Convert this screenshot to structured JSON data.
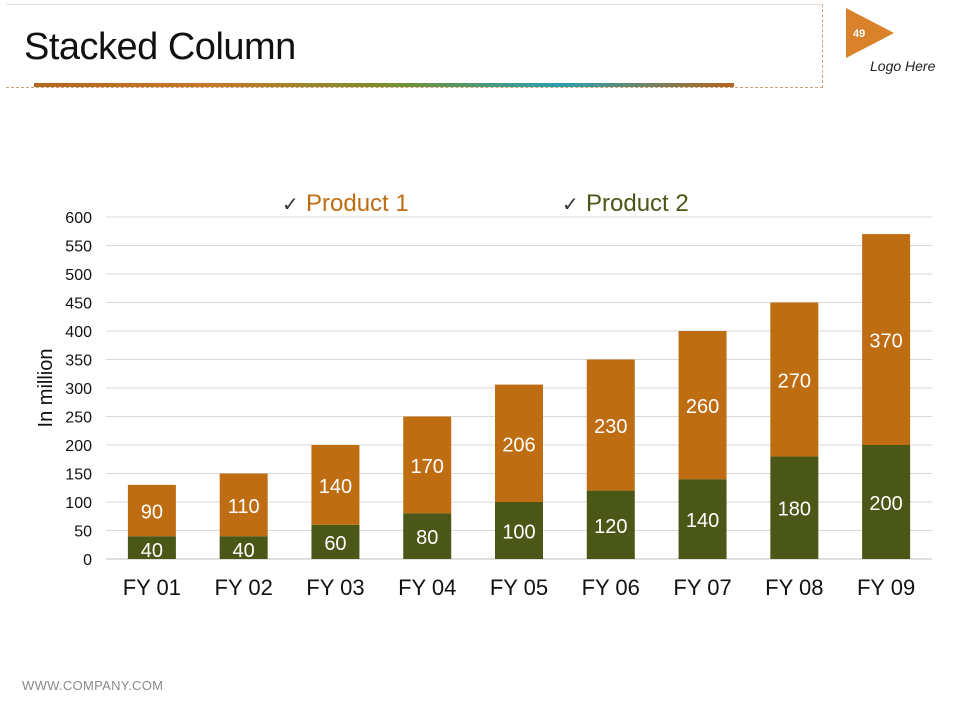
{
  "slide": {
    "title": "Stacked Column",
    "page_number": "49",
    "logo_text": "Logo Here",
    "footer": "WWW.COMPANY.COM"
  },
  "colors": {
    "product1": "#bf6d12",
    "product2": "#4a5716",
    "gridline": "#d9d9d9",
    "accent": "#c9782a"
  },
  "chart_data": {
    "type": "bar",
    "stacked": true,
    "title": "",
    "xlabel": "",
    "ylabel": "In million",
    "categories": [
      "FY 01",
      "FY 02",
      "FY 03",
      "FY 04",
      "FY 05",
      "FY 06",
      "FY 07",
      "FY 08",
      "FY 09"
    ],
    "series": [
      {
        "name": "Product 2",
        "values": [
          40,
          40,
          60,
          80,
          100,
          120,
          140,
          180,
          200
        ]
      },
      {
        "name": "Product 1",
        "values": [
          90,
          110,
          140,
          170,
          206,
          230,
          260,
          270,
          370
        ]
      }
    ],
    "legend": [
      "Product 1",
      "Product 2"
    ],
    "legend_marker": "✓",
    "ylim": [
      0,
      600
    ],
    "yticks": [
      0,
      50,
      100,
      150,
      200,
      250,
      300,
      350,
      400,
      450,
      500,
      550,
      600
    ],
    "grid": true,
    "legend_position": "top"
  }
}
